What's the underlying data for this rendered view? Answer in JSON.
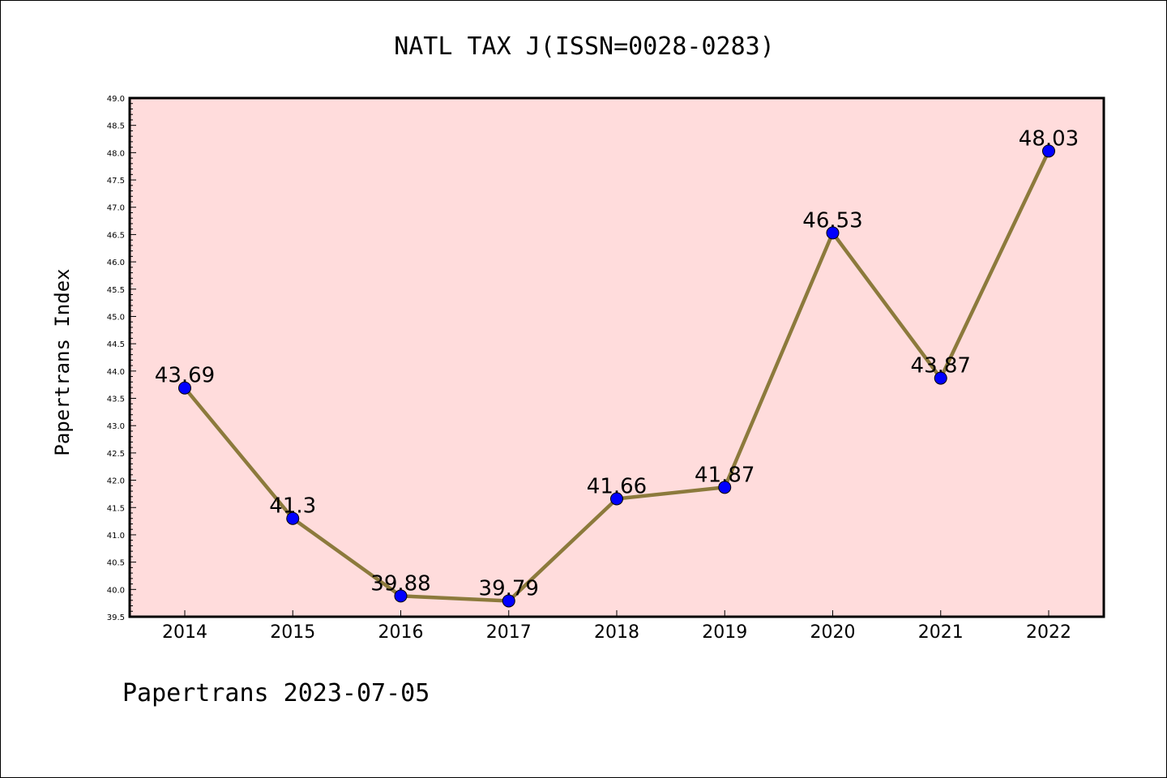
{
  "chart_data": {
    "type": "line",
    "title": "NATL TAX J(ISSN=0028-0283)",
    "ylabel": "Papertrans Index",
    "xlabel": "",
    "categories": [
      "2014",
      "2015",
      "2016",
      "2017",
      "2018",
      "2019",
      "2020",
      "2021",
      "2022"
    ],
    "values": [
      43.69,
      41.3,
      39.88,
      39.79,
      41.66,
      41.87,
      46.53,
      43.87,
      48.03
    ],
    "data_labels": [
      "43.69",
      "41.3",
      "39.88",
      "39.79",
      "41.66",
      "41.87",
      "46.53",
      "43.87",
      "48.03"
    ],
    "ylim": [
      39.5,
      49.0
    ],
    "yticks": [
      "39.5",
      "40.0",
      "40.5",
      "41.0",
      "41.5",
      "42.0",
      "42.5",
      "43.0",
      "43.5",
      "44.0",
      "44.5",
      "45.0",
      "45.5",
      "46.0",
      "46.5",
      "47.0",
      "47.5",
      "48.0",
      "48.5",
      "49.0"
    ],
    "grid": false,
    "colors": {
      "plot_background": "#ffdcdc",
      "line": "#8c7a3c",
      "marker": "#0000ff",
      "axes": "#000000"
    }
  },
  "footer": "Papertrans 2023-07-05"
}
